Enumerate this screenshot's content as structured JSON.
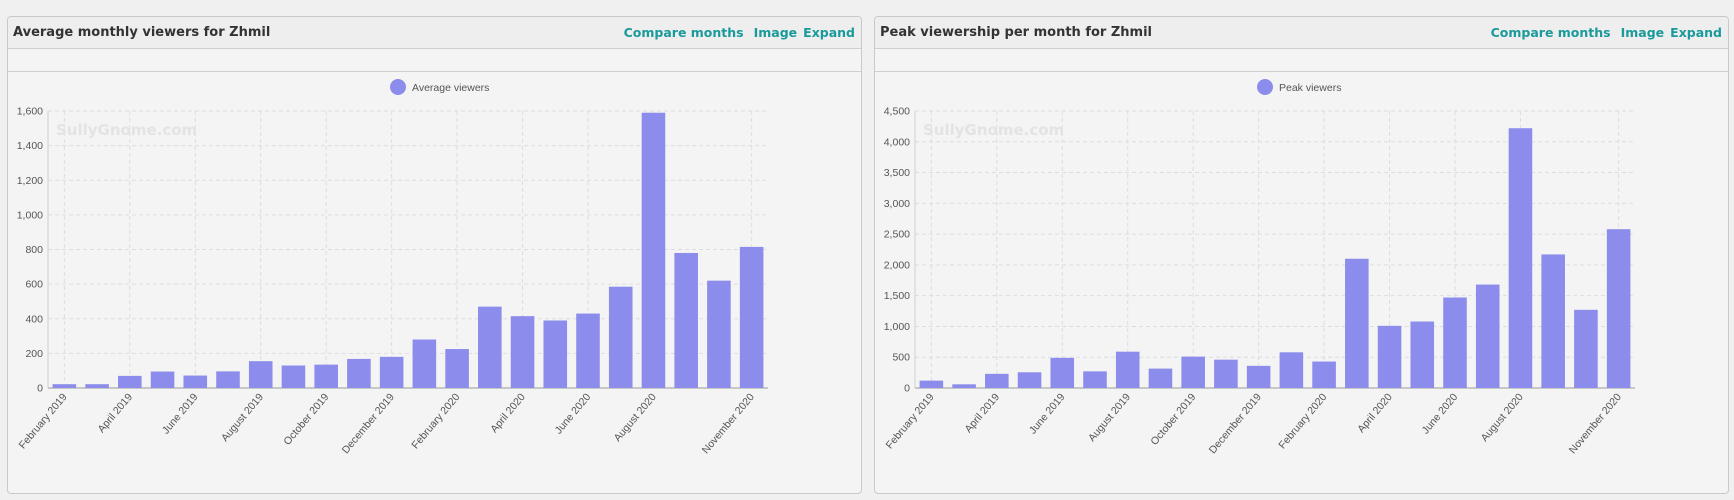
{
  "panels": [
    {
      "title": "Average monthly viewers for Zhmil",
      "links": {
        "compare": "Compare months",
        "image": "Image",
        "expand": "Expand"
      }
    },
    {
      "title": "Peak viewership per month for Zhmil",
      "links": {
        "compare": "Compare months",
        "image": "Image",
        "expand": "Expand"
      }
    }
  ],
  "watermark": "SullyGnome.com",
  "chart_data": [
    {
      "type": "bar",
      "categories": [
        "February 2019",
        "March 2019",
        "April 2019",
        "May 2019",
        "June 2019",
        "July 2019",
        "August 2019",
        "September 2019",
        "October 2019",
        "November 2019",
        "December 2019",
        "January 2020",
        "February 2020",
        "March 2020",
        "April 2020",
        "May 2020",
        "June 2020",
        "July 2020",
        "August 2020",
        "September 2020",
        "October 2020",
        "November 2020"
      ],
      "tick_labels_shown": [
        "February 2019",
        "April 2019",
        "June 2019",
        "August 2019",
        "October 2019",
        "December 2019",
        "February 2020",
        "April 2020",
        "June 2020",
        "August 2020",
        "November 2020"
      ],
      "series": [
        {
          "name": "Average viewers",
          "values": [
            22,
            22,
            70,
            95,
            72,
            96,
            155,
            130,
            135,
            168,
            180,
            280,
            225,
            470,
            415,
            390,
            430,
            585,
            1590,
            780,
            620,
            815
          ]
        }
      ],
      "ylim": [
        0,
        1600
      ],
      "yticks": [
        0,
        200,
        400,
        600,
        800,
        1000,
        1200,
        1400,
        1600
      ],
      "color": "#8b8ceb",
      "grid": true,
      "legend_position": "top-center"
    },
    {
      "type": "bar",
      "categories": [
        "February 2019",
        "March 2019",
        "April 2019",
        "May 2019",
        "June 2019",
        "July 2019",
        "August 2019",
        "September 2019",
        "October 2019",
        "November 2019",
        "December 2019",
        "January 2020",
        "February 2020",
        "March 2020",
        "April 2020",
        "May 2020",
        "June 2020",
        "July 2020",
        "August 2020",
        "September 2020",
        "October 2020",
        "November 2020"
      ],
      "tick_labels_shown": [
        "February 2019",
        "April 2019",
        "June 2019",
        "August 2019",
        "October 2019",
        "December 2019",
        "February 2020",
        "April 2020",
        "June 2020",
        "August 2020",
        "November 2020"
      ],
      "series": [
        {
          "name": "Peak viewers",
          "values": [
            120,
            60,
            230,
            255,
            490,
            270,
            590,
            315,
            510,
            460,
            360,
            580,
            430,
            2100,
            1010,
            1080,
            1470,
            1680,
            4220,
            2170,
            1270,
            2580
          ]
        }
      ],
      "ylim": [
        0,
        4500
      ],
      "yticks": [
        0,
        500,
        1000,
        1500,
        2000,
        2500,
        3000,
        3500,
        4000,
        4500
      ],
      "color": "#8b8ceb",
      "grid": true,
      "legend_position": "top-center"
    }
  ]
}
